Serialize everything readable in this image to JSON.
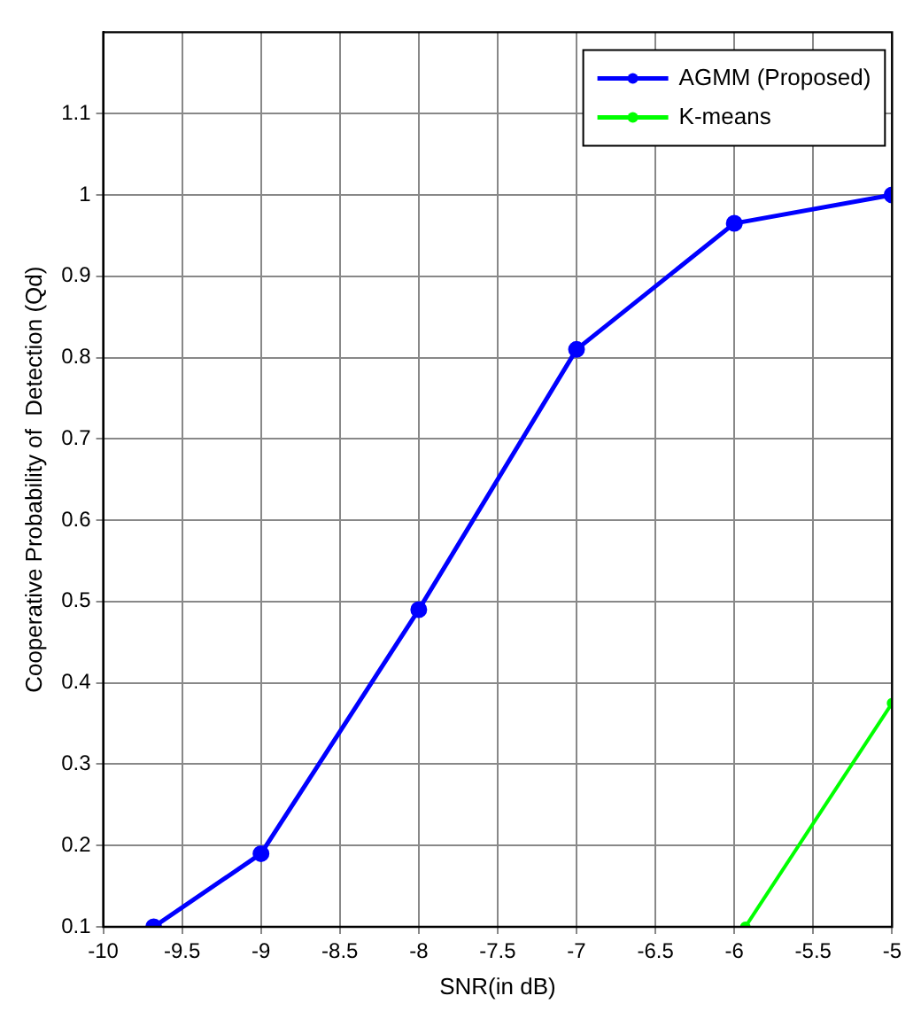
{
  "chart_data": {
    "type": "line",
    "xlabel": "SNR(in dB)",
    "ylabel": "Cooperative Probability of  Detection (Qd)",
    "xlim": [
      -10,
      -5
    ],
    "xticks": [
      -10,
      -9.5,
      -9,
      -8.5,
      -8,
      -7.5,
      -7,
      -6.5,
      -6,
      -5.5,
      -5
    ],
    "ylim": [
      0.1,
      1.2
    ],
    "yticks": [
      0.1,
      0.2,
      0.3,
      0.4,
      0.5,
      0.6,
      0.7,
      0.8,
      0.9,
      1,
      1.1
    ],
    "grid": true,
    "legend": "top right",
    "marker": "circle",
    "line_style": "solid",
    "series": [
      {
        "name": "AGMM (Proposed)",
        "color": "#0000ff",
        "x": [
          -9.68,
          -9,
          -8,
          -7,
          -6,
          -5
        ],
        "values": [
          0.1,
          0.19,
          0.49,
          0.81,
          0.965,
          1.0
        ]
      },
      {
        "name": "K-means",
        "color": "#00ff00",
        "x": [
          -5.93,
          -5
        ],
        "values": [
          0.1,
          0.375
        ]
      }
    ]
  }
}
